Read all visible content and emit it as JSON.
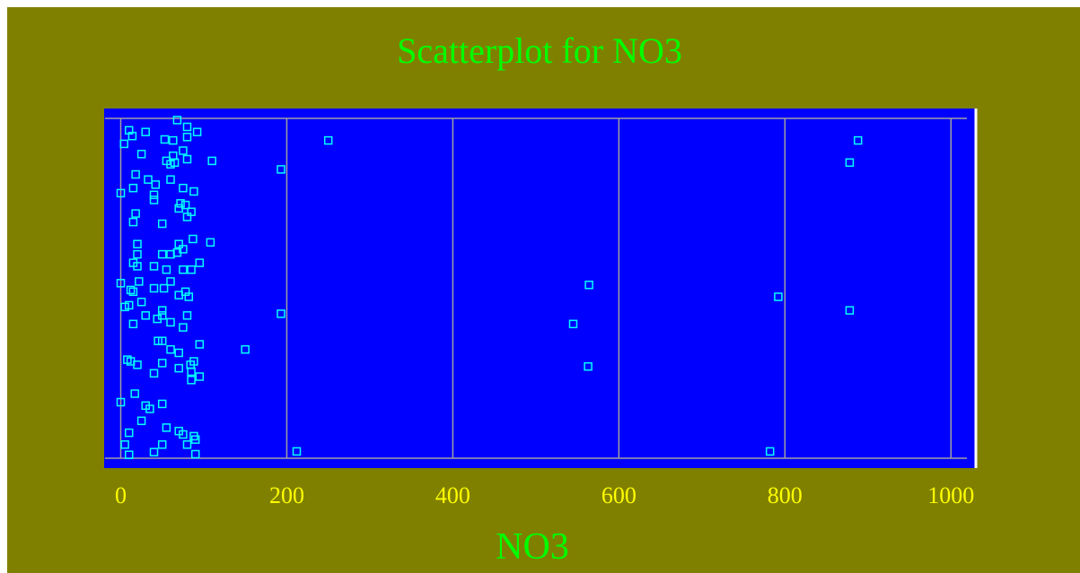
{
  "chart_data": {
    "type": "scatter",
    "title": "Scatterplot for NO3",
    "xlabel": "NO3",
    "ylabel": "",
    "xlim": [
      -20,
      1030
    ],
    "xticks": [
      0,
      200,
      400,
      600,
      800,
      1000
    ],
    "grid": true,
    "colors": {
      "background": "#808000",
      "plot_area": "#0000ff",
      "title": "#00ff00",
      "xlabel": "#00ff00",
      "tick_labels": "#ffff00",
      "gridlines": "#a0a0a0",
      "markers": "#00ffff"
    },
    "x": [
      68,
      80,
      10,
      30,
      92,
      14,
      80,
      53,
      63,
      4,
      250,
      888,
      75,
      25,
      63,
      80,
      110,
      878,
      55,
      60,
      65,
      193,
      18,
      33,
      42,
      60,
      0,
      15,
      40,
      75,
      88,
      40,
      72,
      78,
      70,
      85,
      18,
      80,
      50,
      15,
      108,
      20,
      87,
      70,
      75,
      68,
      50,
      60,
      20,
      95,
      15,
      20,
      40,
      75,
      85,
      55,
      22,
      60,
      0,
      564,
      12,
      15,
      40,
      52,
      78,
      70,
      792,
      82,
      25,
      5,
      10,
      50,
      193,
      878,
      80,
      30,
      50,
      44,
      60,
      15,
      545,
      75,
      45,
      50,
      95,
      150,
      60,
      70,
      8,
      12,
      88,
      50,
      84,
      20,
      563,
      70,
      40,
      85,
      95,
      85,
      17,
      0,
      30,
      50,
      35,
      25,
      55,
      70,
      10,
      75,
      88,
      90,
      5,
      50,
      80,
      782,
      212,
      40,
      10,
      90
    ],
    "y": [
      0.995,
      0.975,
      0.965,
      0.96,
      0.96,
      0.948,
      0.945,
      0.938,
      0.935,
      0.925,
      0.935,
      0.935,
      0.905,
      0.895,
      0.89,
      0.88,
      0.875,
      0.87,
      0.875,
      0.865,
      0.87,
      0.85,
      0.835,
      0.82,
      0.805,
      0.82,
      0.78,
      0.795,
      0.775,
      0.795,
      0.785,
      0.76,
      0.75,
      0.745,
      0.735,
      0.725,
      0.72,
      0.71,
      0.69,
      0.695,
      0.635,
      0.63,
      0.645,
      0.63,
      0.615,
      0.605,
      0.6,
      0.6,
      0.6,
      0.575,
      0.575,
      0.565,
      0.565,
      0.555,
      0.555,
      0.555,
      0.52,
      0.52,
      0.515,
      0.51,
      0.495,
      0.49,
      0.5,
      0.5,
      0.49,
      0.48,
      0.475,
      0.475,
      0.46,
      0.445,
      0.45,
      0.435,
      0.425,
      0.435,
      0.42,
      0.42,
      0.42,
      0.41,
      0.4,
      0.395,
      0.395,
      0.385,
      0.345,
      0.345,
      0.335,
      0.32,
      0.32,
      0.31,
      0.29,
      0.285,
      0.285,
      0.28,
      0.275,
      0.275,
      0.27,
      0.265,
      0.25,
      0.255,
      0.24,
      0.23,
      0.19,
      0.165,
      0.155,
      0.16,
      0.145,
      0.11,
      0.09,
      0.08,
      0.075,
      0.07,
      0.065,
      0.055,
      0.04,
      0.04,
      0.04,
      0.02,
      0.02,
      0.018,
      0.01,
      0.012
    ]
  }
}
